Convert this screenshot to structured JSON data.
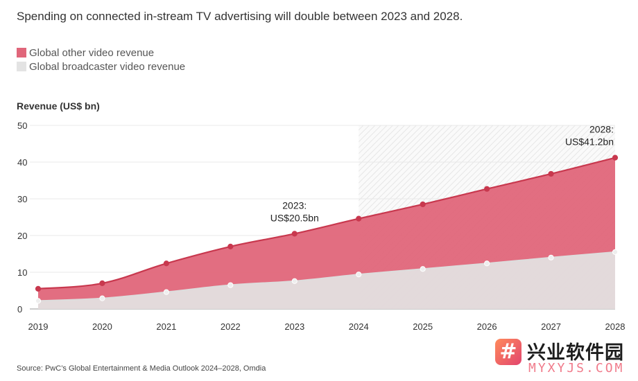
{
  "subtitle": "Spending on connected in-stream TV advertising will double between 2023 and 2028.",
  "legend": [
    {
      "label": "Global other video revenue",
      "color": "#e0667a"
    },
    {
      "label": "Global broadcaster video revenue",
      "color": "#e3e3e3"
    }
  ],
  "source": "Source: PwC’s Global Entertainment & Media Outlook 2024–2028, Omdia",
  "watermark": {
    "title": "兴业软件园",
    "site": "MYXYJS.COM",
    "logo_glyph": "#"
  },
  "chart_data": {
    "type": "area",
    "stacked": false,
    "ylabel": "Revenue (US$ bn)",
    "ylim": [
      0,
      50
    ],
    "yticks": [
      0,
      10,
      20,
      30,
      40,
      50
    ],
    "x": [
      "2019",
      "2020",
      "2021",
      "2022",
      "2023",
      "2024",
      "2025",
      "2026",
      "2027",
      "2028"
    ],
    "forecast_start": "2024",
    "forecast_shading": "hatched",
    "grid": true,
    "series": [
      {
        "name": "Global other video revenue",
        "color": "#c8384e",
        "fill": "#e0667a",
        "values": [
          5.5,
          7.0,
          12.4,
          17.0,
          20.5,
          24.6,
          28.5,
          32.7,
          36.8,
          41.2
        ]
      },
      {
        "name": "Global broadcaster video revenue",
        "color": "#dddddd",
        "fill": "#e3e3e3",
        "values": [
          2.2,
          2.9,
          4.6,
          6.5,
          7.6,
          9.4,
          10.9,
          12.4,
          14.0,
          15.5
        ]
      }
    ],
    "annotations": [
      {
        "x": "2023",
        "lines": [
          "2023:",
          "US$20.5bn"
        ]
      },
      {
        "x": "2028",
        "lines": [
          "2028:",
          "US$41.2bn"
        ]
      }
    ]
  }
}
